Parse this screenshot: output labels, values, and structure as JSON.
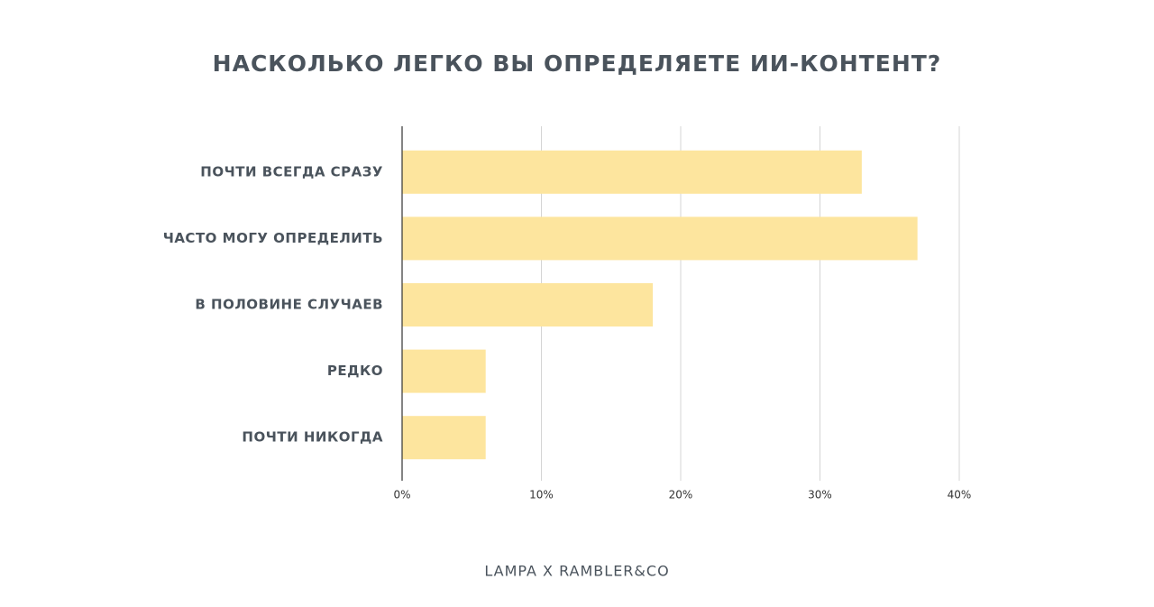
{
  "chart_data": {
    "type": "hbar",
    "title": "НАСКОЛЬКО ЛЕГКО ВЫ ОПРЕДЕЛЯЕТЕ ИИ-КОНТЕНТ?",
    "categories": [
      "ПОЧТИ ВСЕГДА СРАЗУ",
      "ЧАСТО МОГУ ОПРЕДЕЛИТЬ",
      "В ПОЛОВИНЕ СЛУЧАЕВ",
      "РЕДКО",
      "ПОЧТИ НИКОГДА"
    ],
    "values": [
      33,
      37,
      18,
      6,
      6
    ],
    "color": "#fde59e",
    "xlim": [
      0,
      40
    ],
    "xticks": [
      {
        "value": 0,
        "label": "0%"
      },
      {
        "value": 10,
        "label": "10%"
      },
      {
        "value": 20,
        "label": "20%"
      },
      {
        "value": 30,
        "label": "30%"
      },
      {
        "value": 40,
        "label": "40%"
      }
    ],
    "grid": true,
    "source": "LAMPA X RAMBLER&CO"
  }
}
